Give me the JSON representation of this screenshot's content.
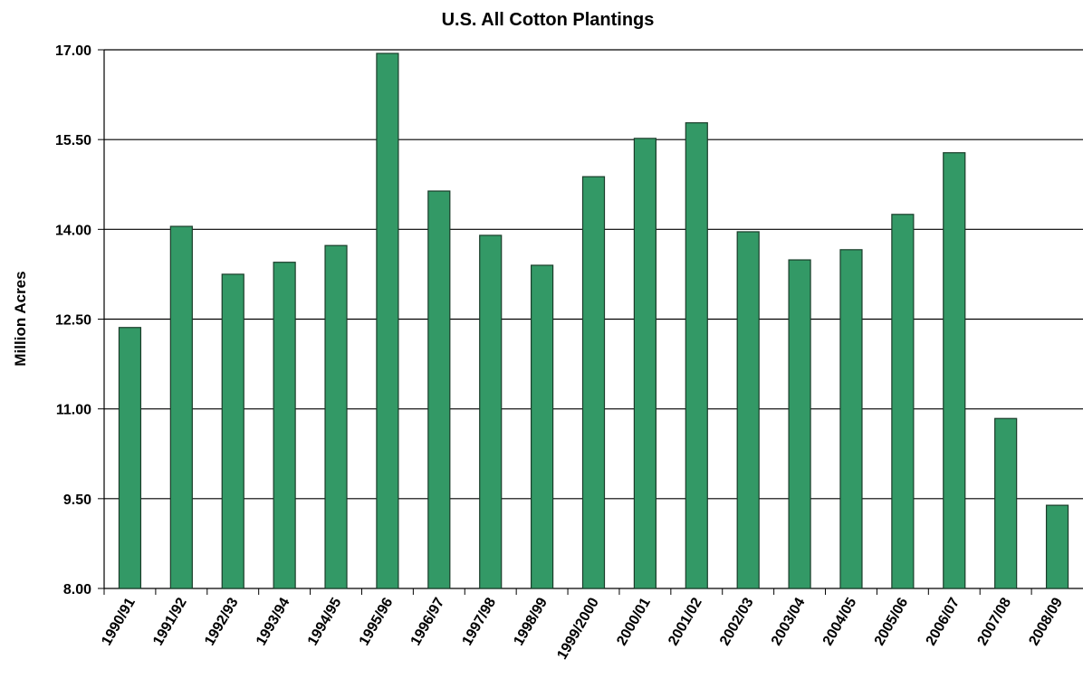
{
  "chart_data": {
    "type": "bar",
    "title": "U.S. All Cotton Plantings",
    "y_label": "Million Acres",
    "categories": [
      "1990/91",
      "1991/92",
      "1992/93",
      "1993/94",
      "1994/95",
      "1995/96",
      "1996/97",
      "1997/98",
      "1998/99",
      "1999/2000",
      "2000/01",
      "2001/02",
      "2002/03",
      "2003/04",
      "2004/05",
      "2005/06",
      "2006/07",
      "2007/08",
      "2008/09"
    ],
    "values": [
      12.36,
      14.05,
      13.25,
      13.45,
      13.73,
      16.94,
      14.64,
      13.9,
      13.4,
      14.88,
      15.52,
      15.78,
      13.96,
      13.49,
      13.66,
      14.25,
      15.28,
      10.84,
      9.39
    ],
    "color": "#339966",
    "ylim": [
      8,
      17
    ],
    "yticks": [
      {
        "value": 8,
        "label": "8.00"
      },
      {
        "value": 9.5,
        "label": "9.50"
      },
      {
        "value": 11,
        "label": "11.00"
      },
      {
        "value": 12.5,
        "label": "12.50"
      },
      {
        "value": 14,
        "label": "14.00"
      },
      {
        "value": 15.5,
        "label": "15.50"
      },
      {
        "value": 17,
        "label": "17.00"
      }
    ],
    "grid": true
  }
}
